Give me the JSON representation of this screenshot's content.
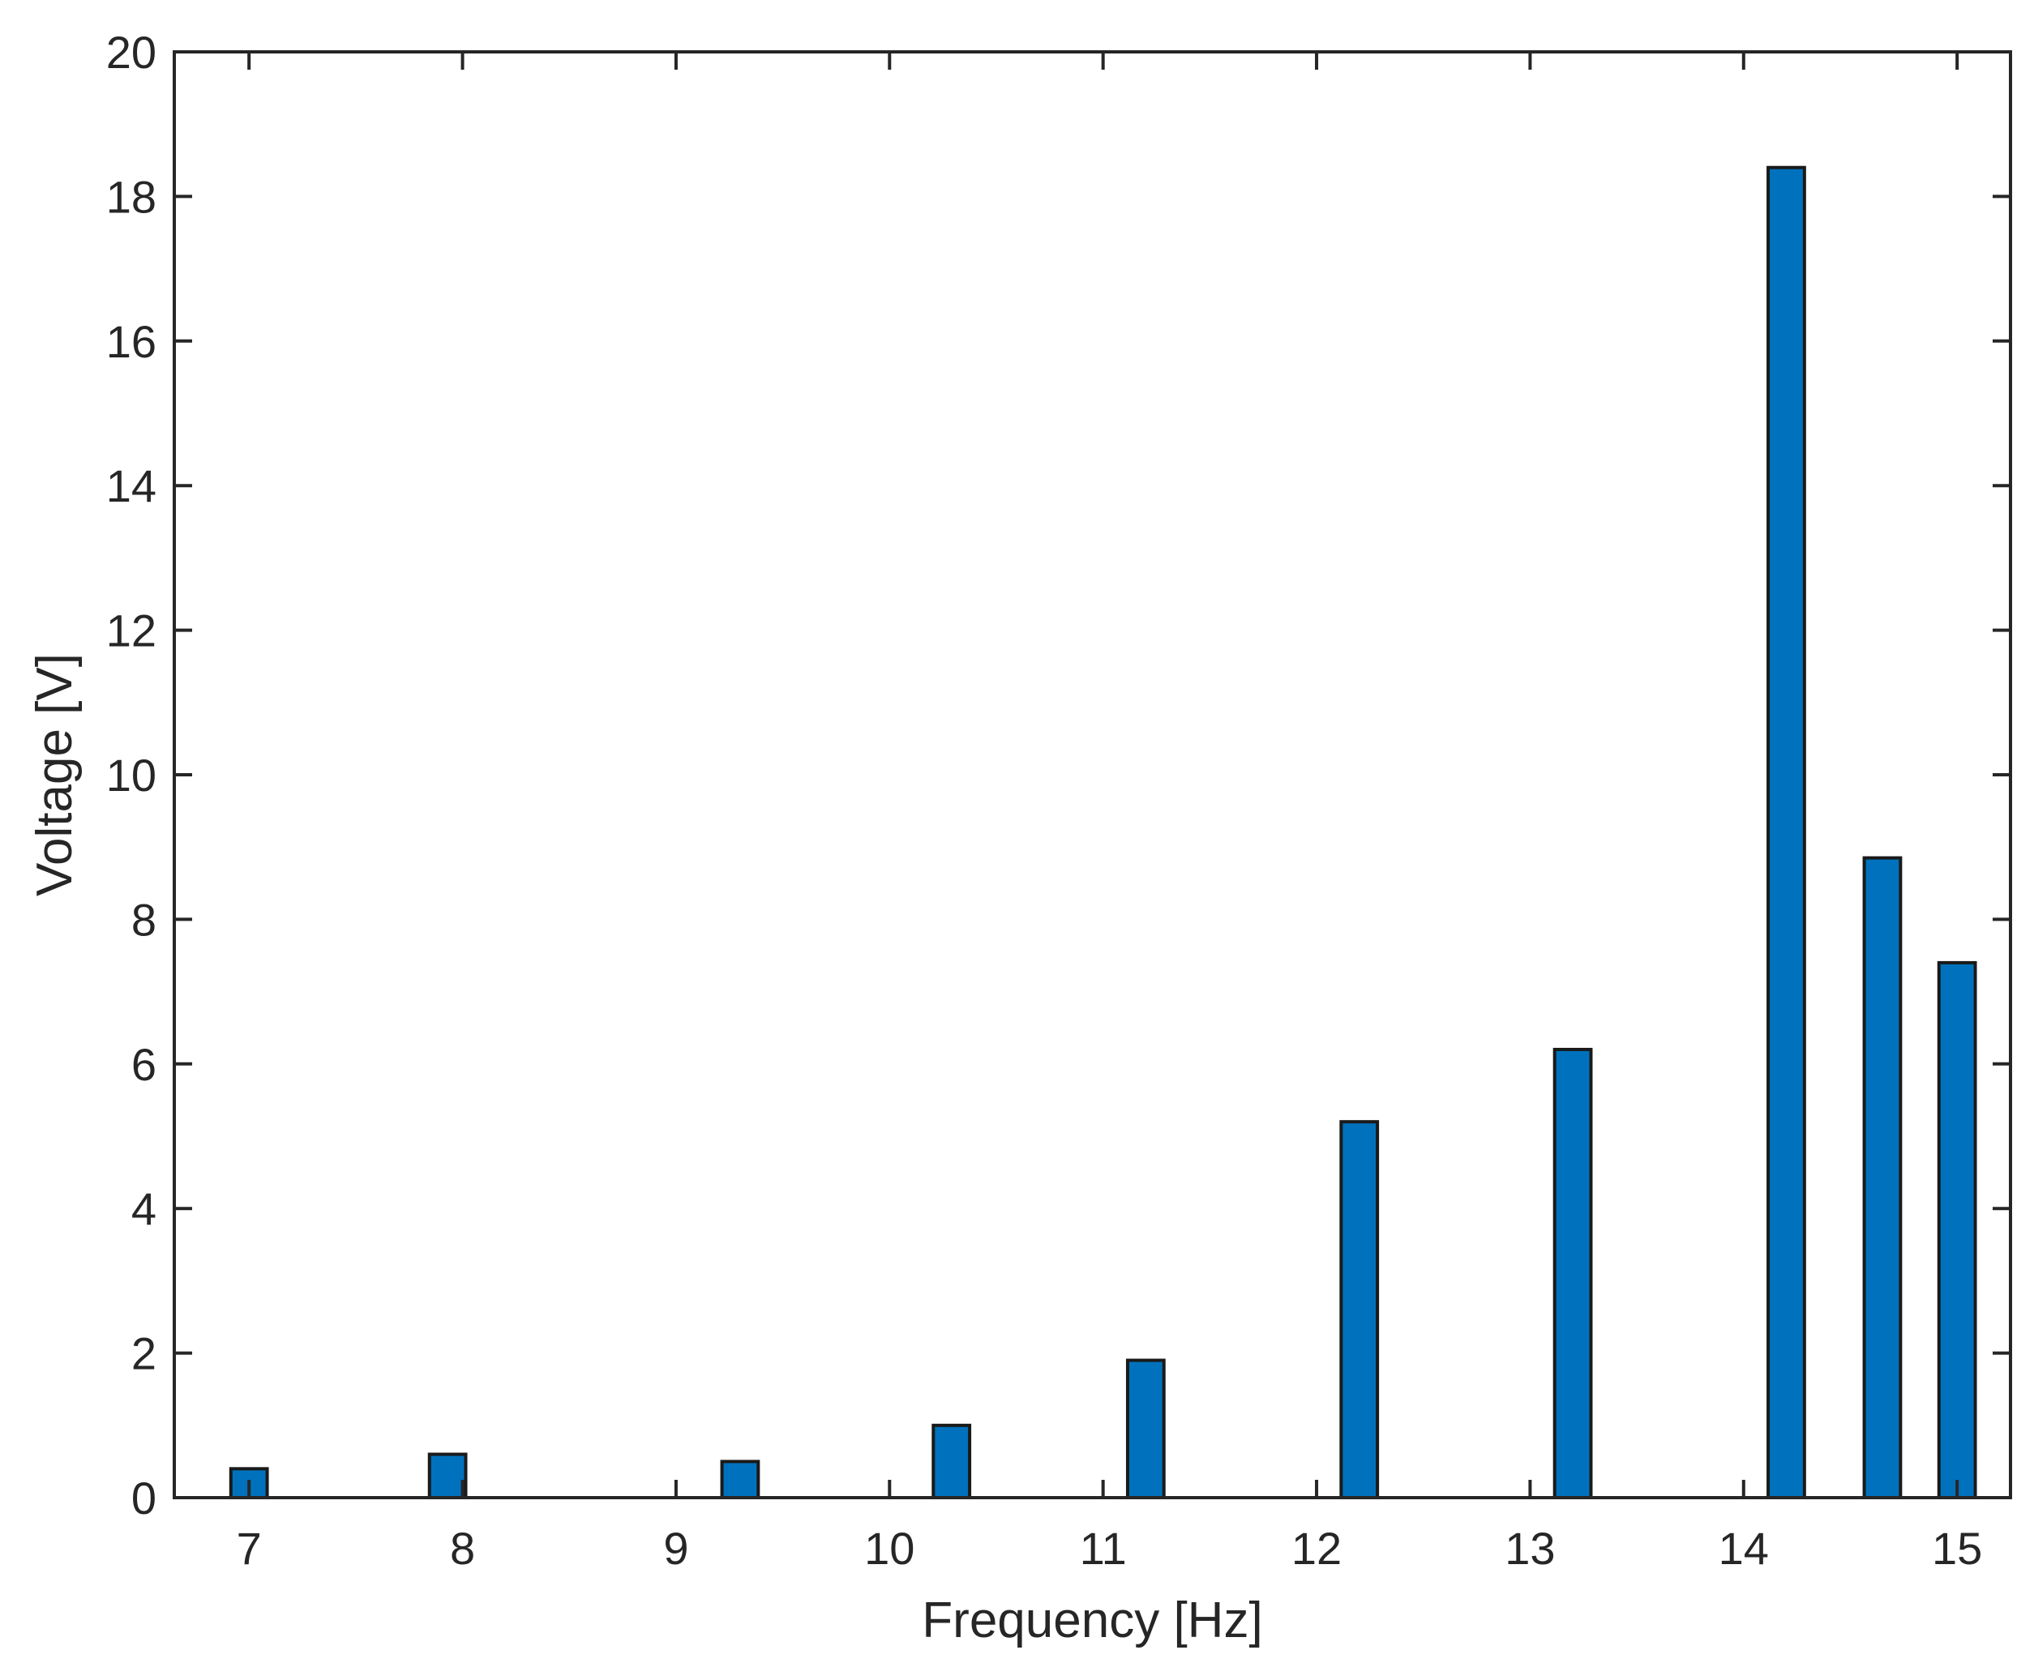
{
  "chart_data": {
    "type": "bar",
    "title": "",
    "xlabel": "Frequency [Hz]",
    "ylabel": "Voltage [V]",
    "xlim": [
      6.65,
      15.25
    ],
    "ylim": [
      0,
      20
    ],
    "xticks": [
      7,
      8,
      9,
      10,
      11,
      12,
      13,
      14,
      15
    ],
    "yticks": [
      0,
      2,
      4,
      6,
      8,
      10,
      12,
      14,
      16,
      18,
      20
    ],
    "grid": false,
    "legend": "none",
    "bar_color": "#0072BD",
    "bar_edge_color": "#1a1a1a",
    "bar_width": 0.17,
    "x": [
      7.0,
      7.93,
      9.3,
      10.29,
      11.2,
      12.2,
      13.2,
      14.2,
      14.65,
      15.0
    ],
    "values": [
      0.4,
      0.6,
      0.5,
      1.0,
      1.9,
      5.2,
      6.2,
      18.4,
      8.85,
      7.4
    ]
  }
}
